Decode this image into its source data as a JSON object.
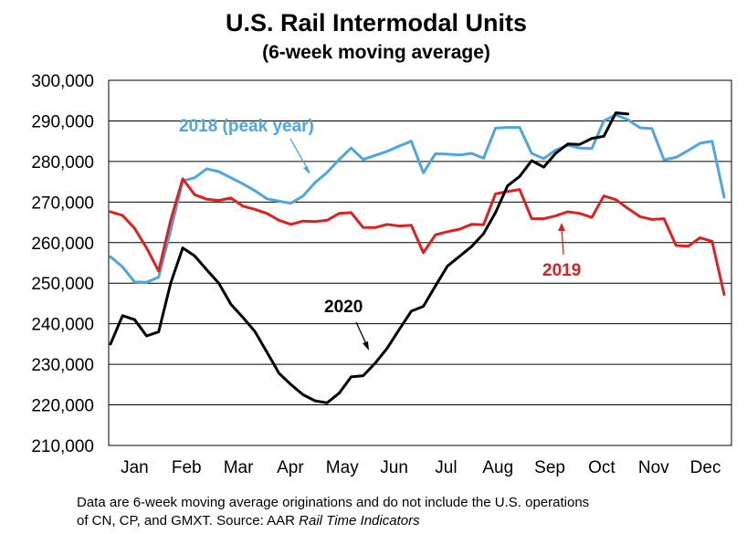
{
  "chart_data": {
    "type": "line",
    "title": "U.S. Rail Intermodal Units",
    "subtitle": "(6-week moving average)",
    "ylim": [
      210000,
      300000
    ],
    "y_ticks": [
      "300,000",
      "290,000",
      "280,000",
      "270,000",
      "260,000",
      "250,000",
      "240,000",
      "230,000",
      "220,000",
      "210,000"
    ],
    "x_ticks": [
      "Jan",
      "Feb",
      "Mar",
      "Apr",
      "May",
      "Jun",
      "Jul",
      "Aug",
      "Sep",
      "Oct",
      "Nov",
      "Dec"
    ],
    "grid": true,
    "series": [
      {
        "name": "2018 (peak year)",
        "color": "#4ea6e0",
        "values": [
          256500,
          254000,
          250300,
          250200,
          251500,
          263000,
          275200,
          276000,
          278200,
          277500,
          276000,
          274500,
          272800,
          270800,
          270200,
          269700,
          271500,
          274800,
          277300,
          280500,
          283300,
          280500,
          281500,
          282500,
          283800,
          285000,
          277200,
          281900,
          281800,
          281600,
          282000,
          280800,
          288200,
          288400,
          288400,
          282000,
          280700,
          282800,
          284000,
          283300,
          283200,
          290000,
          291500,
          290300,
          288300,
          288100,
          280400,
          281000,
          282700,
          284500,
          285000,
          271200
        ]
      },
      {
        "name": "2019",
        "color": "#e02020",
        "values": [
          267600,
          266700,
          263500,
          258700,
          253000,
          265500,
          275700,
          271800,
          270700,
          270400,
          271000,
          269000,
          268200,
          267200,
          265500,
          264500,
          265300,
          265200,
          265500,
          267200,
          267400,
          263700,
          263700,
          264500,
          264100,
          264300,
          257500,
          261900,
          262700,
          263300,
          264500,
          264400,
          272000,
          272600,
          273100,
          265900,
          265900,
          266600,
          267600,
          267200,
          266200,
          271500,
          270600,
          268400,
          266400,
          265700,
          265900,
          259300,
          259100,
          261200,
          260300,
          247200
        ]
      },
      {
        "name": "2020",
        "color": "#000000",
        "values": [
          235000,
          242000,
          241000,
          237000,
          238000,
          250000,
          258700,
          256700,
          253300,
          250000,
          244800,
          241600,
          238100,
          233000,
          227800,
          225000,
          222500,
          221000,
          220500,
          222900,
          226900,
          227200,
          230300,
          234000,
          238600,
          243100,
          244300,
          249300,
          254200,
          256600,
          259000,
          262200,
          267400,
          274000,
          276300,
          280200,
          278600,
          282000,
          284300,
          284200,
          285700,
          286200,
          292000,
          291700
        ]
      }
    ],
    "labels": {
      "s2018": "2018 (peak year)",
      "s2019": "2019",
      "s2020": "2020"
    },
    "footnote": {
      "line1": "Data are 6-week moving average originations and do not include the U.S. operations",
      "line2_prefix": "of CN, CP, and GMXT.   Source: AAR ",
      "line2_italic": "Rail Time Indicators"
    }
  }
}
